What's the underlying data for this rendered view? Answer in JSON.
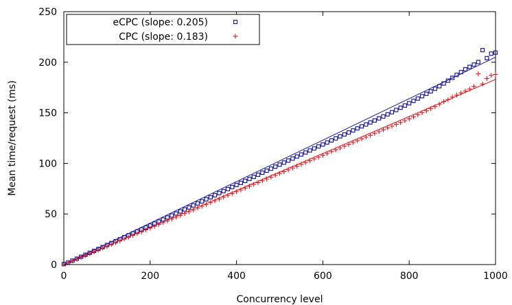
{
  "chart_data": {
    "type": "scatter",
    "title": "",
    "xlabel": "Concurrency level",
    "ylabel": "Mean time/request (ms)",
    "xlim": [
      0,
      1000
    ],
    "ylim": [
      0,
      250
    ],
    "xticks": [
      0,
      200,
      400,
      600,
      800,
      1000
    ],
    "yticks": [
      0,
      50,
      100,
      150,
      200,
      250
    ],
    "grid": false,
    "legend_position": "top-left",
    "series": [
      {
        "name": "eCPC (slope: 0.205)",
        "marker": "square",
        "color": "#1a1a9c",
        "fit_slope": 0.205,
        "points": [
          [
            0,
            0.5
          ],
          [
            10,
            2.0
          ],
          [
            20,
            3.9
          ],
          [
            30,
            5.8
          ],
          [
            40,
            7.7
          ],
          [
            50,
            9.7
          ],
          [
            60,
            11.6
          ],
          [
            70,
            13.5
          ],
          [
            80,
            15.4
          ],
          [
            90,
            17.3
          ],
          [
            100,
            19.3
          ],
          [
            110,
            21.2
          ],
          [
            120,
            23.1
          ],
          [
            130,
            25.0
          ],
          [
            140,
            27.0
          ],
          [
            150,
            28.9
          ],
          [
            160,
            30.8
          ],
          [
            170,
            32.7
          ],
          [
            180,
            34.6
          ],
          [
            190,
            36.6
          ],
          [
            200,
            38.5
          ],
          [
            210,
            40.5
          ],
          [
            220,
            42.5
          ],
          [
            230,
            44.5
          ],
          [
            240,
            46.5
          ],
          [
            250,
            48.5
          ],
          [
            260,
            50.5
          ],
          [
            270,
            52.5
          ],
          [
            280,
            54.5
          ],
          [
            290,
            56.5
          ],
          [
            300,
            58.5
          ],
          [
            310,
            60.5
          ],
          [
            320,
            62.5
          ],
          [
            330,
            64.5
          ],
          [
            340,
            66.5
          ],
          [
            350,
            68.5
          ],
          [
            360,
            70.6
          ],
          [
            370,
            72.6
          ],
          [
            380,
            74.6
          ],
          [
            390,
            76.6
          ],
          [
            400,
            78.7
          ],
          [
            410,
            80.7
          ],
          [
            420,
            82.7
          ],
          [
            430,
            84.7
          ],
          [
            440,
            86.7
          ],
          [
            450,
            88.8
          ],
          [
            460,
            90.8
          ],
          [
            470,
            92.8
          ],
          [
            480,
            94.8
          ],
          [
            490,
            96.8
          ],
          [
            500,
            98.8
          ],
          [
            510,
            100.8
          ],
          [
            520,
            102.8
          ],
          [
            530,
            104.8
          ],
          [
            540,
            106.8
          ],
          [
            550,
            108.8
          ],
          [
            560,
            110.8
          ],
          [
            570,
            112.8
          ],
          [
            580,
            114.8
          ],
          [
            590,
            116.8
          ],
          [
            600,
            118.7
          ],
          [
            610,
            120.7
          ],
          [
            620,
            122.7
          ],
          [
            630,
            124.7
          ],
          [
            640,
            126.7
          ],
          [
            650,
            128.6
          ],
          [
            660,
            130.6
          ],
          [
            670,
            132.6
          ],
          [
            680,
            134.6
          ],
          [
            690,
            136.6
          ],
          [
            700,
            138.5
          ],
          [
            710,
            140.5
          ],
          [
            720,
            142.4
          ],
          [
            730,
            144.5
          ],
          [
            740,
            146.4
          ],
          [
            750,
            148.5
          ],
          [
            760,
            150.6
          ],
          [
            770,
            152.8
          ],
          [
            780,
            155.0
          ],
          [
            790,
            157.2
          ],
          [
            800,
            159.5
          ],
          [
            810,
            161.8
          ],
          [
            820,
            164.1
          ],
          [
            830,
            166.4
          ],
          [
            840,
            168.8
          ],
          [
            850,
            171.2
          ],
          [
            860,
            173.8
          ],
          [
            870,
            176.3
          ],
          [
            880,
            179.0
          ],
          [
            890,
            181.8
          ],
          [
            900,
            184.6
          ],
          [
            910,
            187.5
          ],
          [
            920,
            190.2
          ],
          [
            930,
            193.0
          ],
          [
            940,
            195.4
          ],
          [
            950,
            197.7
          ],
          [
            960,
            200.2
          ],
          [
            970,
            212.0
          ],
          [
            980,
            204.0
          ],
          [
            990,
            208.5
          ],
          [
            1000,
            209.5
          ]
        ]
      },
      {
        "name": "CPC (slope: 0.183)",
        "marker": "plus",
        "color": "#e8141a",
        "fit_slope": 0.183,
        "points": [
          [
            0,
            0.3
          ],
          [
            10,
            1.8
          ],
          [
            20,
            3.6
          ],
          [
            30,
            5.4
          ],
          [
            40,
            7.2
          ],
          [
            50,
            9.0
          ],
          [
            60,
            10.8
          ],
          [
            70,
            12.6
          ],
          [
            80,
            14.4
          ],
          [
            90,
            16.2
          ],
          [
            100,
            18.0
          ],
          [
            110,
            19.8
          ],
          [
            120,
            21.6
          ],
          [
            130,
            23.4
          ],
          [
            140,
            25.2
          ],
          [
            150,
            27.0
          ],
          [
            160,
            28.8
          ],
          [
            170,
            30.6
          ],
          [
            180,
            32.4
          ],
          [
            190,
            34.2
          ],
          [
            200,
            36.0
          ],
          [
            210,
            37.8
          ],
          [
            220,
            39.6
          ],
          [
            230,
            41.4
          ],
          [
            240,
            43.2
          ],
          [
            250,
            45.0
          ],
          [
            260,
            46.8
          ],
          [
            270,
            48.6
          ],
          [
            280,
            50.4
          ],
          [
            290,
            52.2
          ],
          [
            300,
            54.0
          ],
          [
            310,
            55.8
          ],
          [
            320,
            57.6
          ],
          [
            330,
            59.4
          ],
          [
            340,
            61.2
          ],
          [
            350,
            63.0
          ],
          [
            360,
            64.8
          ],
          [
            370,
            66.6
          ],
          [
            380,
            68.4
          ],
          [
            390,
            70.2
          ],
          [
            400,
            72.0
          ],
          [
            410,
            73.8
          ],
          [
            420,
            75.6
          ],
          [
            430,
            77.4
          ],
          [
            440,
            79.2
          ],
          [
            450,
            81.0
          ],
          [
            460,
            82.8
          ],
          [
            470,
            84.6
          ],
          [
            480,
            86.4
          ],
          [
            490,
            88.2
          ],
          [
            500,
            90.0
          ],
          [
            510,
            91.8
          ],
          [
            520,
            93.6
          ],
          [
            530,
            95.4
          ],
          [
            540,
            97.2
          ],
          [
            550,
            99.0
          ],
          [
            560,
            100.8
          ],
          [
            570,
            102.6
          ],
          [
            580,
            104.4
          ],
          [
            590,
            106.2
          ],
          [
            600,
            108.0
          ],
          [
            610,
            109.8
          ],
          [
            620,
            111.6
          ],
          [
            630,
            113.4
          ],
          [
            640,
            115.2
          ],
          [
            650,
            117.0
          ],
          [
            660,
            118.8
          ],
          [
            670,
            120.6
          ],
          [
            680,
            122.4
          ],
          [
            690,
            124.2
          ],
          [
            700,
            126.0
          ],
          [
            710,
            127.8
          ],
          [
            720,
            129.6
          ],
          [
            730,
            131.4
          ],
          [
            740,
            133.2
          ],
          [
            750,
            135.0
          ],
          [
            760,
            136.8
          ],
          [
            770,
            138.6
          ],
          [
            780,
            140.4
          ],
          [
            790,
            142.2
          ],
          [
            800,
            144.0
          ],
          [
            810,
            146.0
          ],
          [
            820,
            148.0
          ],
          [
            830,
            150.0
          ],
          [
            840,
            152.0
          ],
          [
            850,
            154.0
          ],
          [
            860,
            156.0
          ],
          [
            870,
            158.5
          ],
          [
            880,
            161.0
          ],
          [
            890,
            163.0
          ],
          [
            900,
            165.5
          ],
          [
            910,
            167.5
          ],
          [
            920,
            169.5
          ],
          [
            930,
            171.5
          ],
          [
            940,
            173.5
          ],
          [
            950,
            176.0
          ],
          [
            960,
            188.5
          ],
          [
            970,
            178.5
          ],
          [
            980,
            184.0
          ],
          [
            990,
            187.0
          ],
          [
            1000,
            188.0
          ]
        ]
      }
    ]
  }
}
